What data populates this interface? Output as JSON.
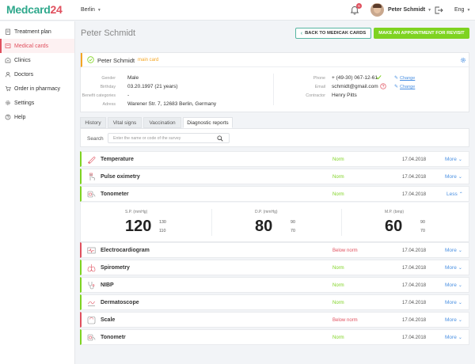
{
  "app": {
    "logo_main": "Medcard",
    "logo_num": "24",
    "city": "Berlin",
    "user": "Peter Schmidt",
    "lang": "Eng",
    "notifications": "6"
  },
  "sidebar": {
    "items": [
      {
        "label": "Treatment plan",
        "icon": "clipboard-icon"
      },
      {
        "label": "Medical cards",
        "icon": "card-icon",
        "active": true
      },
      {
        "label": "Clinics",
        "icon": "clinic-icon"
      },
      {
        "label": "Doctors",
        "icon": "doctor-icon"
      },
      {
        "label": "Order in pharmacy",
        "icon": "cart-icon"
      },
      {
        "label": "Settings",
        "icon": "gear-icon"
      },
      {
        "label": "Help",
        "icon": "help-icon"
      }
    ]
  },
  "header": {
    "title": "Peter Schmidt",
    "back_button": "BACK TO MEDICAK CARDS",
    "appointment_button": "MAKE AN APPOINTMENT FOR REVISIT"
  },
  "patient": {
    "name": "Peter Schmidt",
    "badge": "main card",
    "gender_label": "Gender",
    "gender": "Male",
    "birthday_label": "Birthday",
    "birthday": "03.20.1997 (21 years)",
    "benefit_label": "Benefit categories",
    "benefit": "-",
    "address_label": "Adress",
    "address": "Warener Str. 7, 12683 Berlin, Germany",
    "phone_label": "Phone",
    "phone": "+ (49-30) 067-12-61",
    "email_label": "Email",
    "email": "schmidt@gmail.com",
    "contractor_label": "Contractor",
    "contractor": "Henry Pitts",
    "change_label": "Change"
  },
  "tabs": [
    "History",
    "Vital signs",
    "Vaccination",
    "Diagnostic reports"
  ],
  "search": {
    "label": "Search",
    "placeholder": "Enter the name or code of the survey"
  },
  "reports": [
    {
      "name": "Temperature",
      "status": "Norm",
      "date": "17.04.2018",
      "action": "More",
      "icon": "thermometer-icon"
    },
    {
      "name": "Pulse oximetry",
      "status": "Norm",
      "date": "17.04.2018",
      "action": "More",
      "icon": "finger-icon"
    },
    {
      "name": "Tonometer",
      "status": "Norm",
      "date": "17.04.2018",
      "action": "Less",
      "icon": "tonometer-icon"
    },
    {
      "name": "Electrocardiogram",
      "status": "Below norm",
      "date": "17.04.2018",
      "action": "More",
      "icon": "ecg-icon"
    },
    {
      "name": "Spirometry",
      "status": "Norm",
      "date": "17.04.2018",
      "action": "More",
      "icon": "lungs-icon"
    },
    {
      "name": "NIBP",
      "status": "Norm",
      "date": "17.04.2018",
      "action": "More",
      "icon": "stethoscope-icon"
    },
    {
      "name": "Dermatoscope",
      "status": "Norm",
      "date": "17.04.2018",
      "action": "More",
      "icon": "dermatoscope-icon"
    },
    {
      "name": "Scale",
      "status": "Below norm",
      "date": "17.04.2018",
      "action": "More",
      "icon": "scale-icon"
    },
    {
      "name": "Tonometr",
      "status": "Norm",
      "date": "17.04.2018",
      "action": "More",
      "icon": "tonometer-icon"
    }
  ],
  "tonometer": {
    "sp_label": "S.P. (mmHg)",
    "sp_value": "120",
    "sp_high": "130",
    "sp_low": "110",
    "dp_label": "D.P. (mmHg)",
    "dp_value": "80",
    "dp_high": "90",
    "dp_low": "70",
    "mp_label": "M.P. (bmp)",
    "mp_value": "60",
    "mp_high": "90",
    "mp_low": "70"
  },
  "colors": {
    "brand": "#e0505e",
    "accent": "#2fa88c",
    "norm": "#7ed321",
    "below_norm": "#e0505e",
    "link": "#4a90e2",
    "main_card": "#f5a623"
  }
}
